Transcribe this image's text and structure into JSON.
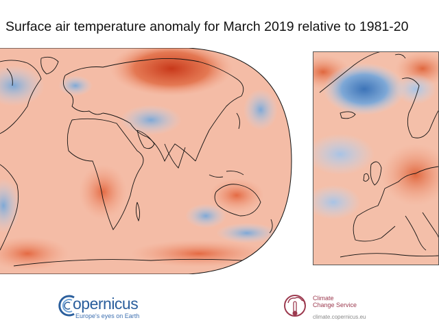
{
  "title": "Surface air temperature anomaly for March 2019 relative to 1981-20",
  "maps": {
    "global": {
      "projection": "robinson",
      "variable": "surface air temperature anomaly",
      "period": "March 2019",
      "reference": "1981-20"
    },
    "europe": {
      "region": "Europe",
      "variable": "surface air temperature anomaly"
    }
  },
  "colors": {
    "warm_strong": "#d4451d",
    "warm": "#f2a184",
    "warm_light": "#f8d0bf",
    "neutral": "#f6eeea",
    "cool_light": "#c9daef",
    "cool": "#7ea8d6",
    "cool_strong": "#3d74b8",
    "coastline": "#111111"
  },
  "logos": {
    "copernicus": {
      "wordmark": "opernicus",
      "tagline": "Europe's eyes on Earth"
    },
    "c3s": {
      "name_line1": "Climate",
      "name_line2": "Change Service",
      "url": "climate.copernicus.eu"
    }
  }
}
